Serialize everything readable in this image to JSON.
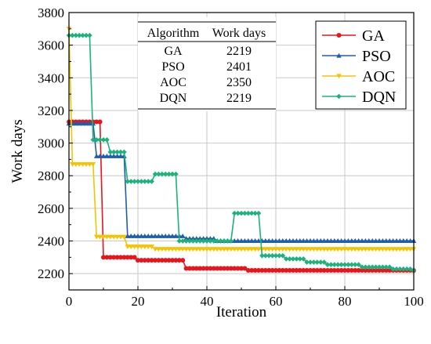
{
  "chart_data": {
    "type": "line",
    "title": "",
    "xlabel": "Iteration",
    "ylabel": "Work days",
    "xlim": [
      0,
      100
    ],
    "ylim": [
      2100,
      3800
    ],
    "xticks": [
      0,
      20,
      40,
      60,
      80,
      100
    ],
    "yticks": [
      2200,
      2400,
      2600,
      2800,
      3000,
      3200,
      3400,
      3600,
      3800
    ],
    "grid": true,
    "legend_position": "top-right",
    "series": [
      {
        "name": "GA",
        "color": "#e8151b",
        "marker": "circle",
        "steps": [
          [
            0,
            3130
          ],
          [
            10,
            2300
          ],
          [
            20,
            2282
          ],
          [
            34,
            2232
          ],
          [
            52,
            2220
          ],
          [
            100,
            2219
          ]
        ]
      },
      {
        "name": "PSO",
        "color": "#1f5ea8",
        "marker": "triangle-up",
        "steps": [
          [
            0,
            3120
          ],
          [
            8,
            2920
          ],
          [
            17,
            2430
          ],
          [
            34,
            2415
          ],
          [
            43,
            2401
          ],
          [
            100,
            2401
          ]
        ]
      },
      {
        "name": "AOC",
        "color": "#f5c400",
        "marker": "triangle-down",
        "steps": [
          [
            0,
            3700
          ],
          [
            1,
            2870
          ],
          [
            8,
            2425
          ],
          [
            17,
            2365
          ],
          [
            25,
            2350
          ],
          [
            100,
            2350
          ]
        ]
      },
      {
        "name": "DQN",
        "color": "#1bb37a",
        "marker": "diamond",
        "steps": [
          [
            0,
            3660
          ],
          [
            7,
            3020
          ],
          [
            12,
            2945
          ],
          [
            17,
            2765
          ],
          [
            25,
            2810
          ],
          [
            32,
            2400
          ],
          [
            48,
            2570
          ],
          [
            56,
            2310
          ],
          [
            63,
            2290
          ],
          [
            69,
            2270
          ],
          [
            75,
            2255
          ],
          [
            85,
            2240
          ],
          [
            94,
            2228
          ],
          [
            100,
            2219
          ]
        ]
      }
    ],
    "table": {
      "headers": [
        "Algorithm",
        "Work days"
      ],
      "rows": [
        [
          "GA",
          "2219"
        ],
        [
          "PSO",
          "2401"
        ],
        [
          "AOC",
          "2350"
        ],
        [
          "DQN",
          "2219"
        ]
      ]
    }
  }
}
